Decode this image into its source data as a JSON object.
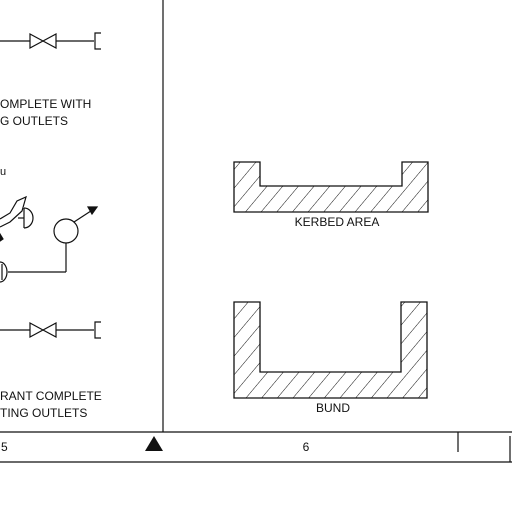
{
  "left_panel": {
    "hydrant_label_1": [
      "OMPLETE WITH",
      "G OUTLETS"
    ],
    "fragment_text": "u",
    "hydrant_label_2": [
      "RANT COMPLETE",
      "TING OUTLETS"
    ]
  },
  "right_panel": {
    "kerbed_area_label": "KERBED AREA",
    "bund_label": "BUND"
  },
  "footer": {
    "left_number": "5",
    "center_number": "6"
  }
}
